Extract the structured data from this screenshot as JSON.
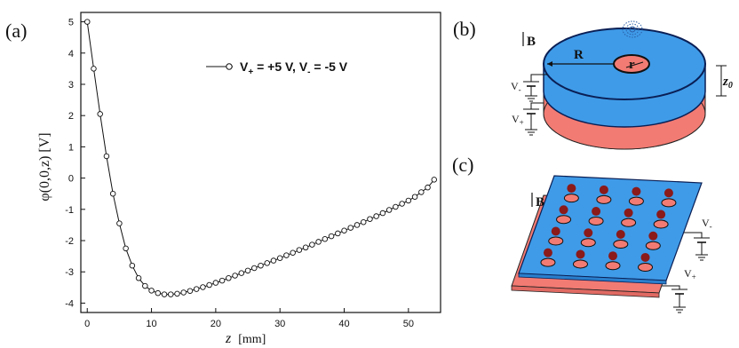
{
  "figure": {
    "panel_a_letter": "(a)",
    "panel_b_letter": "(b)",
    "panel_c_letter": "(c)"
  },
  "chart_data": {
    "type": "line",
    "title": "",
    "xlabel": "z [mm]",
    "xlabel_var": "z",
    "xlabel_unit": "[mm]",
    "ylabel": "φ(0,0,z) [V]",
    "xlim": [
      -1,
      55
    ],
    "ylim": [
      -4.3,
      5.3
    ],
    "xticks": [
      0,
      10,
      20,
      30,
      40,
      50
    ],
    "yticks": [
      5,
      4,
      3,
      2,
      1,
      0,
      -1,
      -2,
      -3,
      -4
    ],
    "grid": false,
    "legend_position": "top-right",
    "marker": "open-circle",
    "line_color": "#111111",
    "series": [
      {
        "name": "V+ = +5 V, V- = -5 V",
        "x": [
          0,
          1,
          2,
          3,
          4,
          5,
          6,
          7,
          8,
          9,
          10,
          11,
          12,
          13,
          14,
          15,
          16,
          17,
          18,
          19,
          20,
          21,
          22,
          23,
          24,
          25,
          26,
          27,
          28,
          29,
          30,
          31,
          32,
          33,
          34,
          35,
          36,
          37,
          38,
          39,
          40,
          41,
          42,
          43,
          44,
          45,
          46,
          47,
          48,
          49,
          50,
          51,
          52,
          53,
          54
        ],
        "y": [
          5.0,
          3.5,
          2.05,
          0.7,
          -0.5,
          -1.45,
          -2.25,
          -2.8,
          -3.2,
          -3.45,
          -3.6,
          -3.68,
          -3.72,
          -3.72,
          -3.7,
          -3.66,
          -3.61,
          -3.55,
          -3.49,
          -3.42,
          -3.35,
          -3.28,
          -3.2,
          -3.12,
          -3.04,
          -2.96,
          -2.88,
          -2.8,
          -2.72,
          -2.64,
          -2.56,
          -2.47,
          -2.39,
          -2.3,
          -2.22,
          -2.13,
          -2.04,
          -1.95,
          -1.86,
          -1.77,
          -1.68,
          -1.59,
          -1.5,
          -1.41,
          -1.31,
          -1.22,
          -1.12,
          -1.02,
          -0.92,
          -0.82,
          -0.72,
          -0.6,
          -0.45,
          -0.3,
          -0.05
        ]
      }
    ]
  },
  "legend_parts": {
    "v_plus": "V",
    "plus_sub": "+",
    "v_plus_value": " = +5 V, V",
    "minus_sub": "-",
    "v_minus_value": " = -5 V"
  },
  "diagram_b": {
    "field_label": "B",
    "outer_radius_label": "R",
    "inner_radius_label": "r",
    "gap_label": "z",
    "gap_sub": "0",
    "v_minus": "V",
    "v_minus_sub": "-",
    "v_plus": "V",
    "v_plus_sub": "+",
    "top_color": "#3f9be8",
    "bottom_color": "#f27b73",
    "edge_color": "#0a1f55",
    "particle_cloud_color": "#2a5fa8"
  },
  "diagram_c": {
    "field_label": "B",
    "v_minus": "V",
    "v_minus_sub": "-",
    "v_plus": "V",
    "v_plus_sub": "+",
    "top_color": "#3f9be8",
    "bottom_color": "#f27b73",
    "ion_color": "#8b1a1a",
    "hole_color": "#f27b73"
  }
}
